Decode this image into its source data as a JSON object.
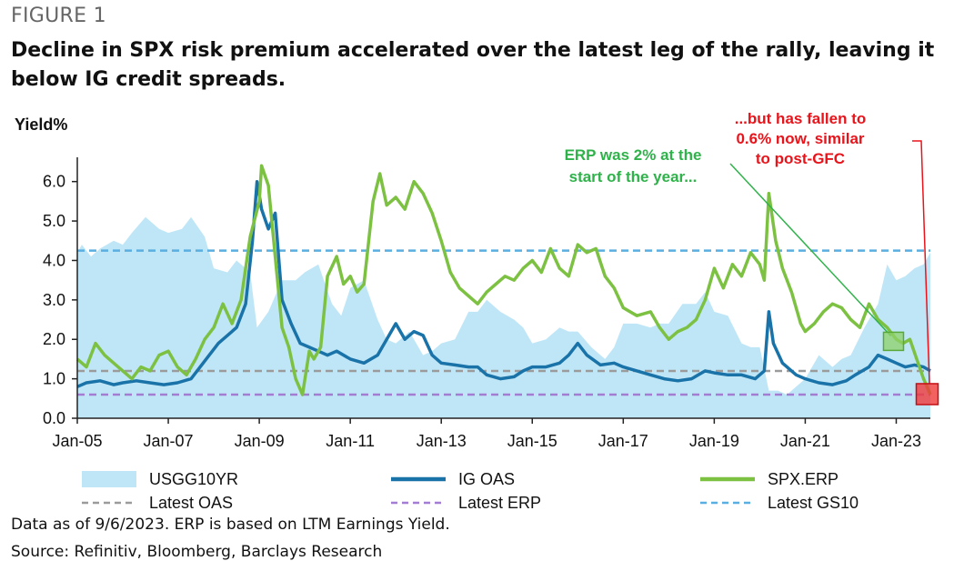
{
  "header": {
    "figure_label": "FIGURE 1",
    "title": "Decline in SPX risk premium accelerated over the latest leg of the rally, leaving it below IG credit spreads."
  },
  "footer": {
    "note": "Data as of 9/6/2023. ERP is based on LTM Earnings Yield.",
    "source": "Source: Refinitiv, Bloomberg, Barclays Research"
  },
  "chart_data": {
    "type": "line",
    "ylabel": "Yield%",
    "ylim": [
      0,
      6.5
    ],
    "yticks": [
      "0.0",
      "1.0",
      "2.0",
      "3.0",
      "4.0",
      "5.0",
      "6.0"
    ],
    "xlim": [
      2005.0,
      2023.75
    ],
    "xticks": [
      "Jan-05",
      "Jan-07",
      "Jan-09",
      "Jan-11",
      "Jan-13",
      "Jan-15",
      "Jan-17",
      "Jan-19",
      "Jan-21",
      "Jan-23"
    ],
    "grid": false,
    "legend_position": "bottom",
    "series": [
      {
        "name": "USGG10YR",
        "style": "area",
        "color": "#bfe6f7",
        "x": [
          2005.0,
          2005.1,
          2005.3,
          2005.5,
          2005.8,
          2006.0,
          2006.2,
          2006.5,
          2006.8,
          2007.0,
          2007.3,
          2007.5,
          2007.8,
          2008.0,
          2008.3,
          2008.5,
          2008.8,
          2008.95,
          2009.2,
          2009.5,
          2009.8,
          2010.0,
          2010.3,
          2010.6,
          2010.8,
          2011.0,
          2011.3,
          2011.6,
          2011.8,
          2012.0,
          2012.3,
          2012.6,
          2012.8,
          2013.0,
          2013.3,
          2013.6,
          2013.8,
          2014.0,
          2014.3,
          2014.6,
          2014.8,
          2015.0,
          2015.3,
          2015.6,
          2015.8,
          2016.0,
          2016.3,
          2016.6,
          2016.8,
          2017.0,
          2017.3,
          2017.6,
          2017.8,
          2018.0,
          2018.3,
          2018.6,
          2018.8,
          2019.0,
          2019.3,
          2019.6,
          2019.8,
          2020.0,
          2020.2,
          2020.4,
          2020.6,
          2020.8,
          2021.0,
          2021.3,
          2021.6,
          2021.8,
          2022.0,
          2022.3,
          2022.6,
          2022.8,
          2023.0,
          2023.2,
          2023.4,
          2023.6,
          2023.75
        ],
        "values": [
          4.2,
          4.4,
          4.1,
          4.3,
          4.5,
          4.4,
          4.7,
          5.1,
          4.8,
          4.7,
          4.8,
          5.1,
          4.6,
          3.8,
          3.7,
          4.0,
          3.7,
          2.3,
          2.7,
          3.5,
          3.5,
          3.7,
          3.9,
          2.9,
          2.6,
          3.3,
          3.5,
          2.5,
          2.0,
          1.9,
          2.2,
          1.6,
          1.7,
          1.9,
          2.0,
          2.7,
          2.7,
          3.0,
          2.7,
          2.5,
          2.3,
          1.9,
          2.0,
          2.3,
          2.2,
          2.2,
          1.8,
          1.5,
          1.8,
          2.4,
          2.4,
          2.3,
          2.4,
          2.4,
          2.9,
          2.9,
          3.2,
          2.7,
          2.6,
          1.9,
          1.8,
          1.8,
          0.7,
          0.7,
          0.6,
          0.8,
          1.0,
          1.6,
          1.3,
          1.5,
          1.6,
          2.3,
          2.9,
          3.9,
          3.5,
          3.6,
          3.8,
          3.9,
          4.2
        ]
      },
      {
        "name": "IG OAS",
        "style": "line",
        "color": "#1a73a8",
        "x": [
          2005.0,
          2005.2,
          2005.5,
          2005.8,
          2006.0,
          2006.3,
          2006.6,
          2006.9,
          2007.2,
          2007.5,
          2007.7,
          2007.9,
          2008.1,
          2008.3,
          2008.5,
          2008.7,
          2008.85,
          2008.95,
          2009.05,
          2009.2,
          2009.35,
          2009.5,
          2009.7,
          2009.9,
          2010.1,
          2010.3,
          2010.5,
          2010.7,
          2011.0,
          2011.3,
          2011.6,
          2011.8,
          2012.0,
          2012.2,
          2012.4,
          2012.6,
          2012.8,
          2013.0,
          2013.3,
          2013.6,
          2013.8,
          2014.0,
          2014.3,
          2014.6,
          2014.8,
          2015.0,
          2015.3,
          2015.6,
          2015.8,
          2016.0,
          2016.2,
          2016.5,
          2016.8,
          2017.0,
          2017.3,
          2017.6,
          2017.9,
          2018.2,
          2018.5,
          2018.8,
          2019.0,
          2019.3,
          2019.6,
          2019.9,
          2020.1,
          2020.2,
          2020.3,
          2020.5,
          2020.8,
          2021.0,
          2021.3,
          2021.6,
          2021.9,
          2022.1,
          2022.4,
          2022.6,
          2022.8,
          2023.0,
          2023.2,
          2023.4,
          2023.6,
          2023.75
        ],
        "values": [
          0.8,
          0.9,
          0.95,
          0.85,
          0.9,
          0.95,
          0.9,
          0.85,
          0.9,
          1.0,
          1.3,
          1.6,
          1.9,
          2.1,
          2.3,
          2.9,
          4.5,
          6.0,
          5.3,
          4.8,
          5.2,
          3.0,
          2.4,
          1.9,
          1.8,
          1.7,
          1.6,
          1.7,
          1.5,
          1.4,
          1.6,
          2.0,
          2.4,
          2.0,
          2.2,
          2.1,
          1.6,
          1.4,
          1.35,
          1.3,
          1.3,
          1.1,
          1.0,
          1.05,
          1.2,
          1.3,
          1.3,
          1.4,
          1.6,
          1.9,
          1.6,
          1.35,
          1.4,
          1.3,
          1.2,
          1.1,
          1.0,
          0.95,
          1.0,
          1.2,
          1.15,
          1.1,
          1.1,
          1.0,
          1.2,
          2.7,
          1.9,
          1.4,
          1.1,
          1.0,
          0.9,
          0.85,
          0.95,
          1.1,
          1.3,
          1.6,
          1.5,
          1.4,
          1.3,
          1.35,
          1.3,
          1.2
        ]
      },
      {
        "name": "SPX.ERP",
        "style": "line",
        "color": "#7dc142",
        "x": [
          2005.0,
          2005.2,
          2005.4,
          2005.6,
          2005.8,
          2006.0,
          2006.2,
          2006.4,
          2006.6,
          2006.8,
          2007.0,
          2007.2,
          2007.4,
          2007.6,
          2007.8,
          2008.0,
          2008.2,
          2008.4,
          2008.6,
          2008.8,
          2009.0,
          2009.05,
          2009.2,
          2009.35,
          2009.5,
          2009.65,
          2009.8,
          2009.95,
          2010.1,
          2010.2,
          2010.35,
          2010.5,
          2010.7,
          2010.85,
          2011.0,
          2011.15,
          2011.3,
          2011.5,
          2011.65,
          2011.8,
          2012.0,
          2012.2,
          2012.4,
          2012.6,
          2012.8,
          2013.0,
          2013.2,
          2013.4,
          2013.6,
          2013.8,
          2014.0,
          2014.2,
          2014.4,
          2014.6,
          2014.8,
          2015.0,
          2015.2,
          2015.4,
          2015.6,
          2015.8,
          2016.0,
          2016.2,
          2016.4,
          2016.6,
          2016.8,
          2017.0,
          2017.3,
          2017.6,
          2017.8,
          2018.0,
          2018.2,
          2018.4,
          2018.6,
          2018.8,
          2019.0,
          2019.2,
          2019.4,
          2019.6,
          2019.8,
          2020.0,
          2020.1,
          2020.2,
          2020.35,
          2020.5,
          2020.7,
          2020.9,
          2021.0,
          2021.2,
          2021.4,
          2021.6,
          2021.8,
          2022.0,
          2022.2,
          2022.4,
          2022.6,
          2022.8,
          2023.0,
          2023.15,
          2023.3,
          2023.45,
          2023.6,
          2023.75
        ],
        "values": [
          1.5,
          1.3,
          1.9,
          1.6,
          1.4,
          1.2,
          1.0,
          1.3,
          1.2,
          1.6,
          1.7,
          1.3,
          1.1,
          1.5,
          2.0,
          2.3,
          2.9,
          2.4,
          3.0,
          4.6,
          5.5,
          6.4,
          5.9,
          4.1,
          2.3,
          1.8,
          1.0,
          0.6,
          1.7,
          1.5,
          1.8,
          3.6,
          4.1,
          3.4,
          3.6,
          3.2,
          3.4,
          5.5,
          6.2,
          5.4,
          5.6,
          5.3,
          6.0,
          5.7,
          5.2,
          4.5,
          3.7,
          3.3,
          3.1,
          2.9,
          3.2,
          3.4,
          3.6,
          3.5,
          3.8,
          4.0,
          3.7,
          4.3,
          3.8,
          3.6,
          4.4,
          4.2,
          4.3,
          3.6,
          3.3,
          2.8,
          2.6,
          2.7,
          2.3,
          2.0,
          2.2,
          2.3,
          2.5,
          3.0,
          3.8,
          3.3,
          3.9,
          3.6,
          4.2,
          3.9,
          3.5,
          5.7,
          4.5,
          3.8,
          3.2,
          2.4,
          2.2,
          2.4,
          2.7,
          2.9,
          2.8,
          2.5,
          2.3,
          2.9,
          2.5,
          2.3,
          2.0,
          1.9,
          2.0,
          1.5,
          1.0,
          0.6
        ]
      }
    ],
    "reference_lines": [
      {
        "name": "Latest OAS",
        "value": 1.2,
        "color": "#9b9b9b"
      },
      {
        "name": "Latest ERP",
        "value": 0.6,
        "color": "#a27dd1"
      },
      {
        "name": "Latest GS10",
        "value": 4.25,
        "color": "#5aaee0"
      }
    ],
    "annotations": [
      {
        "text": [
          "ERP was 2% at the",
          "start of the year..."
        ],
        "color": "#2fb24a",
        "point": {
          "x": 2023.0,
          "y": 1.95
        }
      },
      {
        "text": [
          "...but has fallen to",
          "0.6% now, similar",
          "to post-GFC"
        ],
        "color": "#e8141b",
        "point": {
          "x": 2023.7,
          "y": 0.6
        }
      }
    ]
  }
}
